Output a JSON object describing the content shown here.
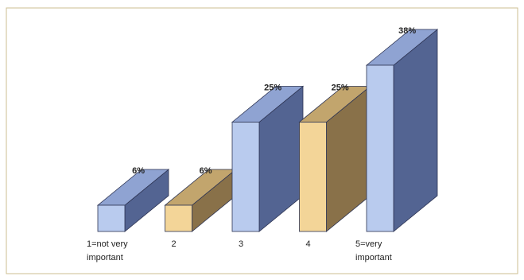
{
  "chart_data": {
    "type": "bar",
    "style": "3d",
    "categories": [
      [
        "1=not very",
        "important"
      ],
      [
        "2"
      ],
      [
        "3"
      ],
      [
        "4"
      ],
      [
        "5=very",
        "important"
      ]
    ],
    "values": [
      6,
      6,
      25,
      25,
      38
    ],
    "value_labels": [
      "6%",
      "6%",
      "25%",
      "25%",
      "38%"
    ],
    "ylim": [
      0,
      40
    ],
    "grid": false,
    "legend": "none",
    "title": "",
    "xlabel": "",
    "ylabel": ""
  },
  "colors": {
    "border": "#cdbf92",
    "blue_front": "#b9cbee",
    "blue_top": "#8fa3d2",
    "blue_side": "#536492",
    "tan_front": "#f3d598",
    "tan_top": "#c2a56d",
    "tan_side": "#897149",
    "edge": "#2c3352"
  },
  "bar_palette": [
    "blue",
    "tan",
    "blue",
    "tan",
    "blue"
  ]
}
